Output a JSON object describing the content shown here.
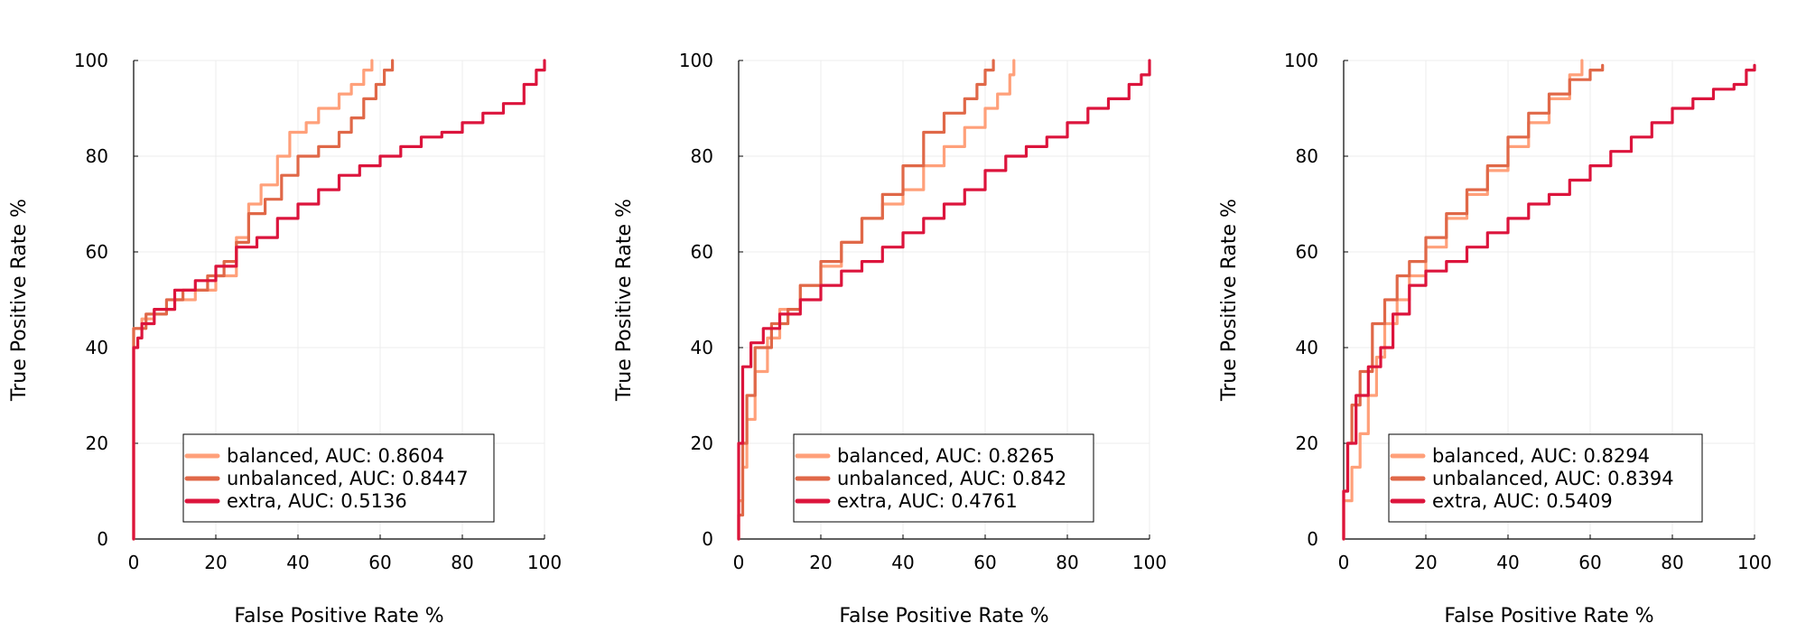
{
  "chart_data": [
    {
      "type": "line",
      "xlabel": "False Positive Rate %",
      "ylabel": "True Positive Rate %",
      "xlim": [
        0,
        100
      ],
      "ylim": [
        0,
        100
      ],
      "xticks": [
        "0",
        "20",
        "40",
        "60",
        "80",
        "100"
      ],
      "yticks": [
        "0",
        "20",
        "40",
        "60",
        "80",
        "100"
      ],
      "grid": true,
      "legend_position": "bottom-center",
      "series": [
        {
          "name": "balanced, AUC: 0.8604",
          "color": "#FFA07A",
          "points": [
            [
              0,
              0
            ],
            [
              0,
              44
            ],
            [
              2,
              46
            ],
            [
              5,
              48
            ],
            [
              10,
              50
            ],
            [
              15,
              52
            ],
            [
              20,
              55
            ],
            [
              25,
              63
            ],
            [
              28,
              70
            ],
            [
              31,
              74
            ],
            [
              35,
              80
            ],
            [
              38,
              85
            ],
            [
              42,
              87
            ],
            [
              45,
              90
            ],
            [
              50,
              93
            ],
            [
              53,
              95
            ],
            [
              56,
              98
            ],
            [
              58,
              100
            ]
          ]
        },
        {
          "name": "unbalanced, AUC: 0.8447",
          "color": "#E06848",
          "points": [
            [
              0,
              0
            ],
            [
              0,
              44
            ],
            [
              3,
              47
            ],
            [
              8,
              50
            ],
            [
              12,
              52
            ],
            [
              18,
              55
            ],
            [
              22,
              58
            ],
            [
              25,
              62
            ],
            [
              28,
              68
            ],
            [
              32,
              71
            ],
            [
              36,
              76
            ],
            [
              40,
              80
            ],
            [
              45,
              82
            ],
            [
              50,
              85
            ],
            [
              53,
              88
            ],
            [
              56,
              92
            ],
            [
              59,
              95
            ],
            [
              61,
              98
            ],
            [
              63,
              100
            ]
          ]
        },
        {
          "name": "extra, AUC: 0.5136",
          "color": "#DC143C",
          "points": [
            [
              0,
              0
            ],
            [
              0,
              40
            ],
            [
              1,
              42
            ],
            [
              2,
              45
            ],
            [
              5,
              48
            ],
            [
              10,
              52
            ],
            [
              15,
              54
            ],
            [
              20,
              57
            ],
            [
              25,
              61
            ],
            [
              30,
              63
            ],
            [
              35,
              67
            ],
            [
              40,
              70
            ],
            [
              45,
              73
            ],
            [
              50,
              76
            ],
            [
              55,
              78
            ],
            [
              60,
              80
            ],
            [
              65,
              82
            ],
            [
              70,
              84
            ],
            [
              75,
              85
            ],
            [
              80,
              87
            ],
            [
              85,
              89
            ],
            [
              90,
              91
            ],
            [
              95,
              95
            ],
            [
              98,
              98
            ],
            [
              100,
              100
            ]
          ]
        }
      ]
    },
    {
      "type": "line",
      "xlabel": "False Positive Rate %",
      "ylabel": "True Positive Rate %",
      "xlim": [
        0,
        100
      ],
      "ylim": [
        0,
        100
      ],
      "xticks": [
        "0",
        "20",
        "40",
        "60",
        "80",
        "100"
      ],
      "yticks": [
        "0",
        "20",
        "40",
        "60",
        "80",
        "100"
      ],
      "grid": true,
      "legend_position": "bottom-center",
      "series": [
        {
          "name": "balanced, AUC: 0.8265",
          "color": "#FFA07A",
          "points": [
            [
              0,
              0
            ],
            [
              0,
              8
            ],
            [
              1,
              15
            ],
            [
              2,
              25
            ],
            [
              4,
              35
            ],
            [
              7,
              42
            ],
            [
              10,
              48
            ],
            [
              15,
              53
            ],
            [
              20,
              57
            ],
            [
              25,
              62
            ],
            [
              30,
              67
            ],
            [
              35,
              70
            ],
            [
              40,
              73
            ],
            [
              45,
              78
            ],
            [
              50,
              82
            ],
            [
              55,
              86
            ],
            [
              60,
              90
            ],
            [
              63,
              93
            ],
            [
              66,
              97
            ],
            [
              67,
              100
            ]
          ]
        },
        {
          "name": "unbalanced, AUC: 0.842",
          "color": "#E06848",
          "points": [
            [
              0,
              0
            ],
            [
              0,
              5
            ],
            [
              1,
              20
            ],
            [
              2,
              30
            ],
            [
              4,
              40
            ],
            [
              8,
              45
            ],
            [
              12,
              48
            ],
            [
              15,
              53
            ],
            [
              20,
              58
            ],
            [
              25,
              62
            ],
            [
              30,
              67
            ],
            [
              35,
              72
            ],
            [
              40,
              78
            ],
            [
              45,
              85
            ],
            [
              50,
              89
            ],
            [
              55,
              92
            ],
            [
              58,
              95
            ],
            [
              60,
              98
            ],
            [
              62,
              100
            ]
          ]
        },
        {
          "name": "extra, AUC: 0.4761",
          "color": "#DC143C",
          "points": [
            [
              0,
              0
            ],
            [
              0,
              20
            ],
            [
              1,
              36
            ],
            [
              3,
              41
            ],
            [
              6,
              44
            ],
            [
              10,
              47
            ],
            [
              15,
              50
            ],
            [
              20,
              53
            ],
            [
              25,
              56
            ],
            [
              30,
              58
            ],
            [
              35,
              61
            ],
            [
              40,
              64
            ],
            [
              45,
              67
            ],
            [
              50,
              70
            ],
            [
              55,
              73
            ],
            [
              60,
              77
            ],
            [
              65,
              80
            ],
            [
              70,
              82
            ],
            [
              75,
              84
            ],
            [
              80,
              87
            ],
            [
              85,
              90
            ],
            [
              90,
              92
            ],
            [
              95,
              95
            ],
            [
              98,
              97
            ],
            [
              100,
              100
            ]
          ]
        }
      ]
    },
    {
      "type": "line",
      "xlabel": "False Positive Rate %",
      "ylabel": "True Positive Rate %",
      "xlim": [
        0,
        100
      ],
      "ylim": [
        0,
        100
      ],
      "xticks": [
        "0",
        "20",
        "40",
        "60",
        "80",
        "100"
      ],
      "yticks": [
        "0",
        "20",
        "40",
        "60",
        "80",
        "100"
      ],
      "grid": true,
      "legend_position": "bottom-center",
      "series": [
        {
          "name": "balanced, AUC: 0.8294",
          "color": "#FFA07A",
          "points": [
            [
              0,
              0
            ],
            [
              0,
              8
            ],
            [
              2,
              15
            ],
            [
              4,
              22
            ],
            [
              6,
              30
            ],
            [
              8,
              38
            ],
            [
              10,
              45
            ],
            [
              13,
              50
            ],
            [
              16,
              55
            ],
            [
              20,
              61
            ],
            [
              25,
              67
            ],
            [
              30,
              72
            ],
            [
              35,
              77
            ],
            [
              40,
              82
            ],
            [
              45,
              87
            ],
            [
              50,
              92
            ],
            [
              55,
              97
            ],
            [
              58,
              100
            ]
          ]
        },
        {
          "name": "unbalanced, AUC: 0.8394",
          "color": "#E06848",
          "points": [
            [
              0,
              0
            ],
            [
              0,
              10
            ],
            [
              1,
              20
            ],
            [
              2,
              28
            ],
            [
              4,
              35
            ],
            [
              7,
              45
            ],
            [
              10,
              50
            ],
            [
              13,
              55
            ],
            [
              16,
              58
            ],
            [
              20,
              63
            ],
            [
              25,
              68
            ],
            [
              30,
              73
            ],
            [
              35,
              78
            ],
            [
              40,
              84
            ],
            [
              45,
              89
            ],
            [
              50,
              93
            ],
            [
              55,
              96
            ],
            [
              60,
              98
            ],
            [
              63,
              99
            ]
          ]
        },
        {
          "name": "extra, AUC: 0.5409",
          "color": "#DC143C",
          "points": [
            [
              0,
              0
            ],
            [
              0,
              10
            ],
            [
              1,
              20
            ],
            [
              3,
              30
            ],
            [
              6,
              36
            ],
            [
              9,
              40
            ],
            [
              12,
              47
            ],
            [
              16,
              53
            ],
            [
              20,
              56
            ],
            [
              25,
              58
            ],
            [
              30,
              61
            ],
            [
              35,
              64
            ],
            [
              40,
              67
            ],
            [
              45,
              70
            ],
            [
              50,
              72
            ],
            [
              55,
              75
            ],
            [
              60,
              78
            ],
            [
              65,
              81
            ],
            [
              70,
              84
            ],
            [
              75,
              87
            ],
            [
              80,
              90
            ],
            [
              85,
              92
            ],
            [
              90,
              94
            ],
            [
              95,
              95
            ],
            [
              98,
              98
            ],
            [
              100,
              99
            ]
          ]
        }
      ]
    }
  ]
}
